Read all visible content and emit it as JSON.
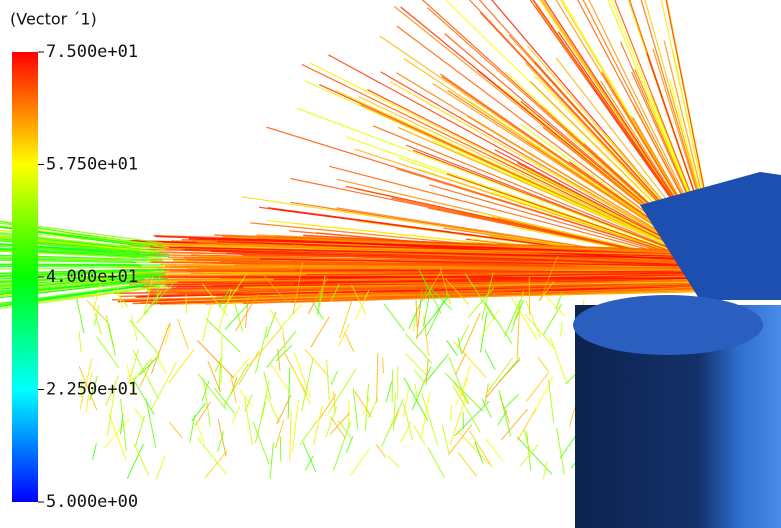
{
  "legend": {
    "title": "(Vector ´1)",
    "lim": [
      5,
      75
    ],
    "ticks": [
      {
        "value": 75,
        "label": "7.500e+01"
      },
      {
        "value": 57.5,
        "label": "5.750e+01"
      },
      {
        "value": 40,
        "label": "4.000e+01"
      },
      {
        "value": 22.5,
        "label": "2.250e+01"
      },
      {
        "value": 5,
        "label": "5.000e+00"
      }
    ],
    "colormap": [
      "#0000ff",
      "#00ffff",
      "#00ff00",
      "#ffff00",
      "#ff0000"
    ]
  }
}
